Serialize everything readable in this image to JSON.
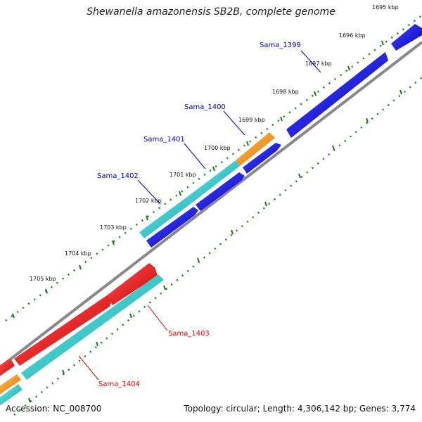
{
  "title": "Shewanella amazonensis SB2B, complete genome",
  "footer": {
    "accession": "Accession: NC_008700",
    "summary": "Topology: circular; Length: 4,306,142 bp; Genes: 3,774"
  },
  "kbp_labels": [
    "1695 kbp",
    "1696 kbp",
    "1697 kbp",
    "1698 kbp",
    "1699 kbp",
    "1700 kbp",
    "1701 kbp",
    "1702 kbp",
    "1703 kbp",
    "1704 kbp",
    "1705 kbp"
  ],
  "gene_labels": [
    {
      "name": "Sama_1399",
      "color": "#0000cc"
    },
    {
      "name": "Sama_1400",
      "color": "#0000cc"
    },
    {
      "name": "Sama_1401",
      "color": "#0000cc"
    },
    {
      "name": "Sama_1402",
      "color": "#0000cc"
    },
    {
      "name": "Sama_1403",
      "color": "#dd0000"
    },
    {
      "name": "Sama_1404",
      "color": "#dd0000"
    }
  ],
  "colors": {
    "backbone": "#888888",
    "tick": "#1a7a1a",
    "cds_forward": "#0000e0",
    "cds_reverse": "#ee0000",
    "rna_cyan": "#20c8c8",
    "orange": "#ff9900"
  }
}
